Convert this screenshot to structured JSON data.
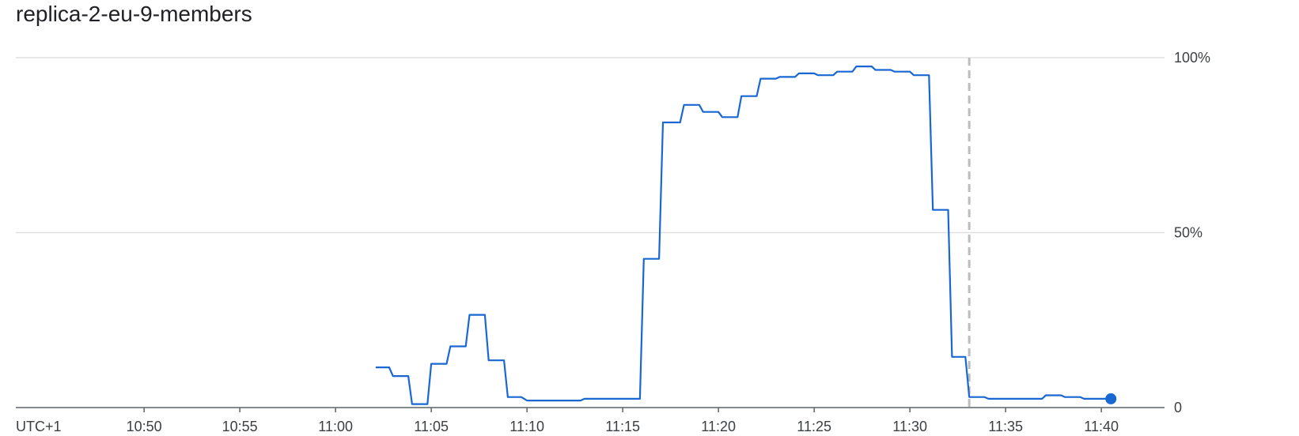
{
  "chart_data": {
    "type": "line",
    "title": "replica-2-eu-9-members",
    "timezone_label": "UTC+1",
    "x_tick_labels": [
      "10:50",
      "10:55",
      "11:00",
      "11:05",
      "11:10",
      "11:15",
      "11:20",
      "11:25",
      "11:30",
      "11:35",
      "11:40"
    ],
    "x_tick_minutes": [
      50,
      55,
      60,
      65,
      70,
      75,
      80,
      85,
      90,
      95,
      100
    ],
    "xlim_minutes": [
      43.3,
      103.3
    ],
    "y_tick_labels": [
      "0",
      "50%",
      "100%"
    ],
    "y_tick_values": [
      0,
      50,
      100
    ],
    "ylim": [
      0,
      100
    ],
    "grid": true,
    "marker_time_minutes": 93.1,
    "series": [
      {
        "values": [
          [
            62.1,
            11.5
          ],
          [
            62.8,
            11.5
          ],
          [
            63.0,
            9.0
          ],
          [
            63.8,
            9.0
          ],
          [
            64.0,
            1.0
          ],
          [
            64.8,
            1.0
          ],
          [
            65.0,
            12.5
          ],
          [
            65.8,
            12.5
          ],
          [
            66.0,
            17.5
          ],
          [
            66.8,
            17.5
          ],
          [
            67.0,
            26.5
          ],
          [
            67.8,
            26.5
          ],
          [
            68.0,
            13.5
          ],
          [
            68.8,
            13.5
          ],
          [
            69.0,
            3.0
          ],
          [
            69.7,
            3.0
          ],
          [
            70.0,
            2.0
          ],
          [
            70.8,
            2.0
          ],
          [
            71.0,
            2.0
          ],
          [
            72.0,
            2.0
          ],
          [
            72.8,
            2.0
          ],
          [
            73.0,
            2.5
          ],
          [
            74.0,
            2.5
          ],
          [
            75.0,
            2.5
          ],
          [
            75.9,
            2.5
          ],
          [
            76.1,
            42.5
          ],
          [
            76.9,
            42.5
          ],
          [
            77.1,
            81.5
          ],
          [
            78.0,
            81.5
          ],
          [
            78.2,
            86.5
          ],
          [
            79.0,
            86.5
          ],
          [
            79.2,
            84.5
          ],
          [
            80.0,
            84.5
          ],
          [
            80.2,
            83.0
          ],
          [
            81.0,
            83.0
          ],
          [
            81.2,
            89.0
          ],
          [
            82.0,
            89.0
          ],
          [
            82.2,
            94.0
          ],
          [
            83.0,
            94.0
          ],
          [
            83.2,
            94.5
          ],
          [
            84.0,
            94.5
          ],
          [
            84.2,
            95.5
          ],
          [
            85.0,
            95.5
          ],
          [
            85.2,
            95.0
          ],
          [
            86.0,
            95.0
          ],
          [
            86.2,
            96.0
          ],
          [
            87.0,
            96.0
          ],
          [
            87.2,
            97.5
          ],
          [
            88.0,
            97.5
          ],
          [
            88.2,
            96.5
          ],
          [
            89.0,
            96.5
          ],
          [
            89.2,
            96.0
          ],
          [
            90.0,
            96.0
          ],
          [
            90.2,
            95.0
          ],
          [
            91.0,
            95.0
          ],
          [
            91.2,
            56.5
          ],
          [
            92.0,
            56.5
          ],
          [
            92.2,
            14.5
          ],
          [
            92.9,
            14.5
          ],
          [
            93.1,
            3.0
          ],
          [
            93.9,
            3.0
          ],
          [
            94.1,
            2.5
          ],
          [
            95.0,
            2.5
          ],
          [
            96.0,
            2.5
          ],
          [
            96.9,
            2.5
          ],
          [
            97.1,
            3.5
          ],
          [
            97.9,
            3.5
          ],
          [
            98.1,
            3.0
          ],
          [
            98.9,
            3.0
          ],
          [
            99.1,
            2.5
          ],
          [
            100.0,
            2.5
          ],
          [
            100.5,
            2.5
          ]
        ],
        "color": "#1967d2",
        "last_point_marker": true
      }
    ],
    "colors": {
      "line": "#1967d2",
      "grid": "#e0e0e0",
      "axis": "#5f6368",
      "marker_line": "#bdbdbd"
    }
  }
}
